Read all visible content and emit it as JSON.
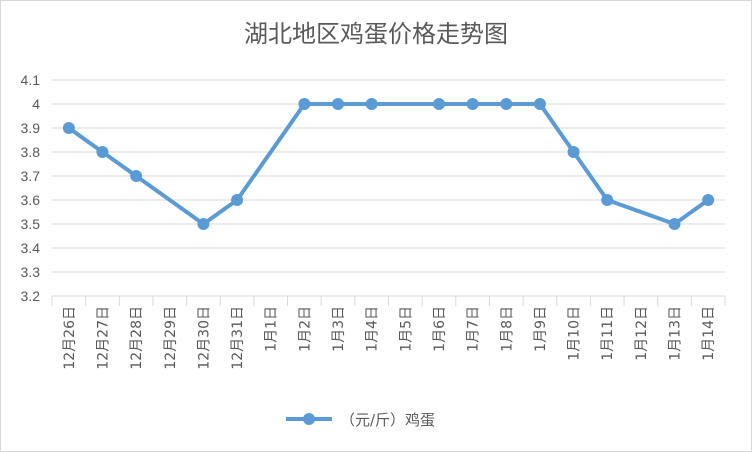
{
  "chart_data": {
    "type": "line",
    "title": "湖北地区鸡蛋价格走势图",
    "categories": [
      "12月26日",
      "12月27日",
      "12月28日",
      "12月29日",
      "12月30日",
      "12月31日",
      "1月1日",
      "1月2日",
      "1月3日",
      "1月4日",
      "1月5日",
      "1月6日",
      "1月7日",
      "1月8日",
      "1月9日",
      "1月10日",
      "1月11日",
      "1月12日",
      "1月13日",
      "1月14日"
    ],
    "series": [
      {
        "name": "（元/斤）鸡蛋",
        "values": [
          3.9,
          3.8,
          3.7,
          null,
          3.5,
          3.6,
          null,
          4.0,
          4.0,
          4.0,
          null,
          4.0,
          4.0,
          4.0,
          4.0,
          3.8,
          3.6,
          null,
          3.5,
          3.6
        ]
      }
    ],
    "ylim": [
      3.2,
      4.1
    ],
    "yticks": [
      "3.2",
      "3.3",
      "3.4",
      "3.5",
      "3.6",
      "3.7",
      "3.8",
      "3.9",
      "4",
      "4.1"
    ],
    "grid": true,
    "legend": "bottom",
    "colors": {
      "series": "#5b9bd5",
      "grid": "#d9d9d9",
      "text": "#595959"
    }
  }
}
